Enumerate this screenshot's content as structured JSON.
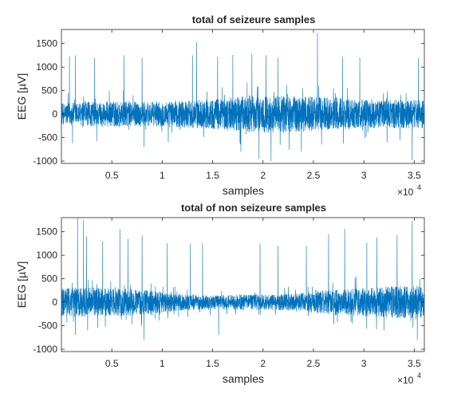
{
  "chart_data": [
    {
      "type": "line",
      "title": "total of seizeure samples",
      "xlabel": "samples",
      "ylabel": "EEG [µV]",
      "xlim": [
        1,
        36000
      ],
      "ylim": [
        -1050,
        1800
      ],
      "xticks": [
        5000,
        10000,
        15000,
        20000,
        25000,
        30000,
        35000
      ],
      "xtick_labels": [
        "0.5",
        "1",
        "1.5",
        "2",
        "2.5",
        "3",
        "3.5"
      ],
      "xtick_exponent_base": "×10",
      "xtick_exponent": "4",
      "yticks": [
        -1000,
        -500,
        0,
        500,
        1000,
        1500
      ],
      "ytick_labels": [
        "-1000",
        "-500",
        "0",
        "500",
        "1000",
        "1500"
      ],
      "color": "#0072BD",
      "grid": false,
      "signal": {
        "description_x": "sample index",
        "envelope_x": [
          1,
          3000,
          6000,
          9000,
          12000,
          15000,
          18000,
          21000,
          24000,
          27000,
          30000,
          33000,
          36000
        ],
        "envelope_amp": [
          230,
          260,
          280,
          260,
          290,
          320,
          380,
          400,
          380,
          350,
          300,
          310,
          300
        ],
        "spikes": [
          {
            "x": 800,
            "y": 1230
          },
          {
            "x": 1100,
            "y": -620
          },
          {
            "x": 1400,
            "y": 1250
          },
          {
            "x": 3300,
            "y": 1200
          },
          {
            "x": 3500,
            "y": -580
          },
          {
            "x": 6200,
            "y": 1250
          },
          {
            "x": 8000,
            "y": 1200
          },
          {
            "x": 8200,
            "y": -700
          },
          {
            "x": 10600,
            "y": -600
          },
          {
            "x": 13000,
            "y": 1250
          },
          {
            "x": 13400,
            "y": 1530
          },
          {
            "x": 15500,
            "y": 1220
          },
          {
            "x": 17000,
            "y": 1260
          },
          {
            "x": 17800,
            "y": -800
          },
          {
            "x": 18900,
            "y": 1280
          },
          {
            "x": 19600,
            "y": -950
          },
          {
            "x": 20300,
            "y": 1250
          },
          {
            "x": 20800,
            "y": -1000
          },
          {
            "x": 21500,
            "y": 1200
          },
          {
            "x": 22600,
            "y": -760
          },
          {
            "x": 23800,
            "y": -800
          },
          {
            "x": 25400,
            "y": 1730
          },
          {
            "x": 25800,
            "y": -650
          },
          {
            "x": 27900,
            "y": 1220
          },
          {
            "x": 29600,
            "y": 1200
          },
          {
            "x": 32300,
            "y": -600
          },
          {
            "x": 34800,
            "y": -980
          },
          {
            "x": 35400,
            "y": 1200
          }
        ]
      }
    },
    {
      "type": "line",
      "title": "total of non seizeure samples",
      "xlabel": "samples",
      "ylabel": "EEG [µV]",
      "xlim": [
        1,
        36000
      ],
      "ylim": [
        -1050,
        1800
      ],
      "xticks": [
        5000,
        10000,
        15000,
        20000,
        25000,
        30000,
        35000
      ],
      "xtick_labels": [
        "0.5",
        "1",
        "1.5",
        "2",
        "2.5",
        "3",
        "3.5"
      ],
      "xtick_exponent_base": "×10",
      "xtick_exponent": "4",
      "yticks": [
        -1000,
        -500,
        0,
        500,
        1000,
        1500
      ],
      "ytick_labels": [
        "-1000",
        "-500",
        "0",
        "500",
        "1000",
        "1500"
      ],
      "color": "#0072BD",
      "grid": false,
      "signal": {
        "description_x": "sample index",
        "envelope_x": [
          1,
          3000,
          6000,
          9000,
          12000,
          15000,
          18000,
          21000,
          24000,
          27000,
          30000,
          33000,
          36000
        ],
        "envelope_amp": [
          300,
          320,
          300,
          250,
          180,
          150,
          170,
          160,
          200,
          280,
          300,
          350,
          330
        ],
        "spikes": [
          {
            "x": 1600,
            "y": 1800
          },
          {
            "x": 2200,
            "y": 1750
          },
          {
            "x": 1400,
            "y": -700
          },
          {
            "x": 2500,
            "y": 1400
          },
          {
            "x": 4100,
            "y": 1300
          },
          {
            "x": 5800,
            "y": 1560
          },
          {
            "x": 6600,
            "y": 1350
          },
          {
            "x": 8000,
            "y": 1420
          },
          {
            "x": 8200,
            "y": -800
          },
          {
            "x": 10500,
            "y": 1250
          },
          {
            "x": 12800,
            "y": 1250
          },
          {
            "x": 14000,
            "y": 1250
          },
          {
            "x": 15600,
            "y": -700
          },
          {
            "x": 19700,
            "y": 1250
          },
          {
            "x": 21500,
            "y": 1200
          },
          {
            "x": 24300,
            "y": 1200
          },
          {
            "x": 26500,
            "y": 1450
          },
          {
            "x": 28100,
            "y": 1560
          },
          {
            "x": 30300,
            "y": 1270
          },
          {
            "x": 31300,
            "y": 1380
          },
          {
            "x": 32000,
            "y": -600
          },
          {
            "x": 33300,
            "y": 1430
          },
          {
            "x": 34800,
            "y": 1730
          },
          {
            "x": 35300,
            "y": -800
          }
        ]
      }
    }
  ]
}
